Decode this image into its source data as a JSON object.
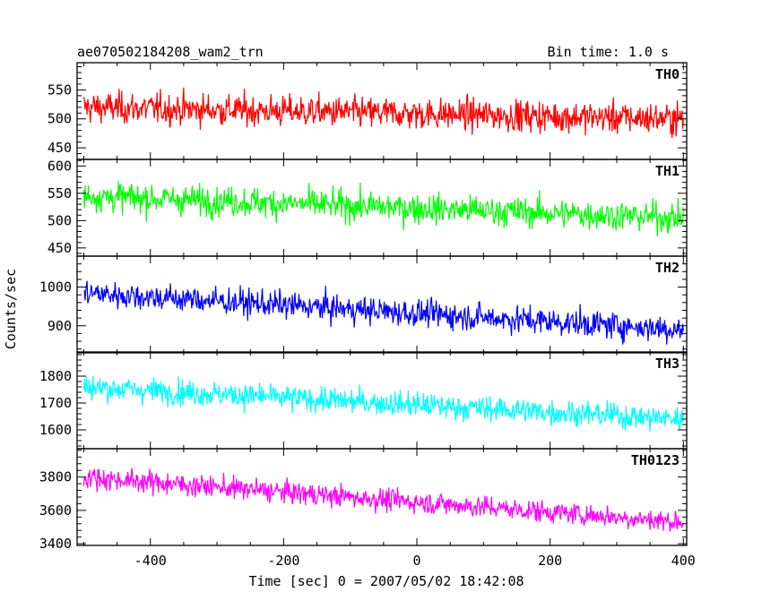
{
  "header": {
    "title": "ae070502184208_wam2_trn",
    "bin_time": "Bin time: 1.0 s"
  },
  "chart_data": {
    "type": "line",
    "xlabel": "Time [sec] 0 = 2007/05/02 18:42:08",
    "ylabel": "Counts/sec",
    "xlim": [
      -510,
      405
    ],
    "x_ticks": [
      -400,
      -200,
      0,
      200,
      400
    ],
    "x_start": -500,
    "x_end": 400,
    "panels": [
      {
        "name": "TH0",
        "color": "#ff0000",
        "ylim": [
          430,
          597
        ],
        "yticks": [
          450,
          500,
          550
        ],
        "start_level": 520,
        "end_level": 500,
        "amplitude": 35
      },
      {
        "name": "TH1",
        "color": "#00ff00",
        "ylim": [
          435,
          612
        ],
        "yticks": [
          450,
          500,
          550,
          600
        ],
        "start_level": 545,
        "end_level": 505,
        "amplitude": 35
      },
      {
        "name": "TH2",
        "color": "#0000ff",
        "ylim": [
          830,
          1080
        ],
        "yticks": [
          900,
          1000
        ],
        "start_level": 985,
        "end_level": 890,
        "amplitude": 45
      },
      {
        "name": "TH3",
        "color": "#00ffff",
        "ylim": [
          1530,
          1890
        ],
        "yticks": [
          1600,
          1700,
          1800
        ],
        "start_level": 1760,
        "end_level": 1640,
        "amplitude": 60
      },
      {
        "name": "TH0123",
        "color": "#ff00ff",
        "ylim": [
          3390,
          3970
        ],
        "yticks": [
          3400,
          3600,
          3800
        ],
        "start_level": 3800,
        "end_level": 3530,
        "amplitude": 85
      }
    ]
  }
}
